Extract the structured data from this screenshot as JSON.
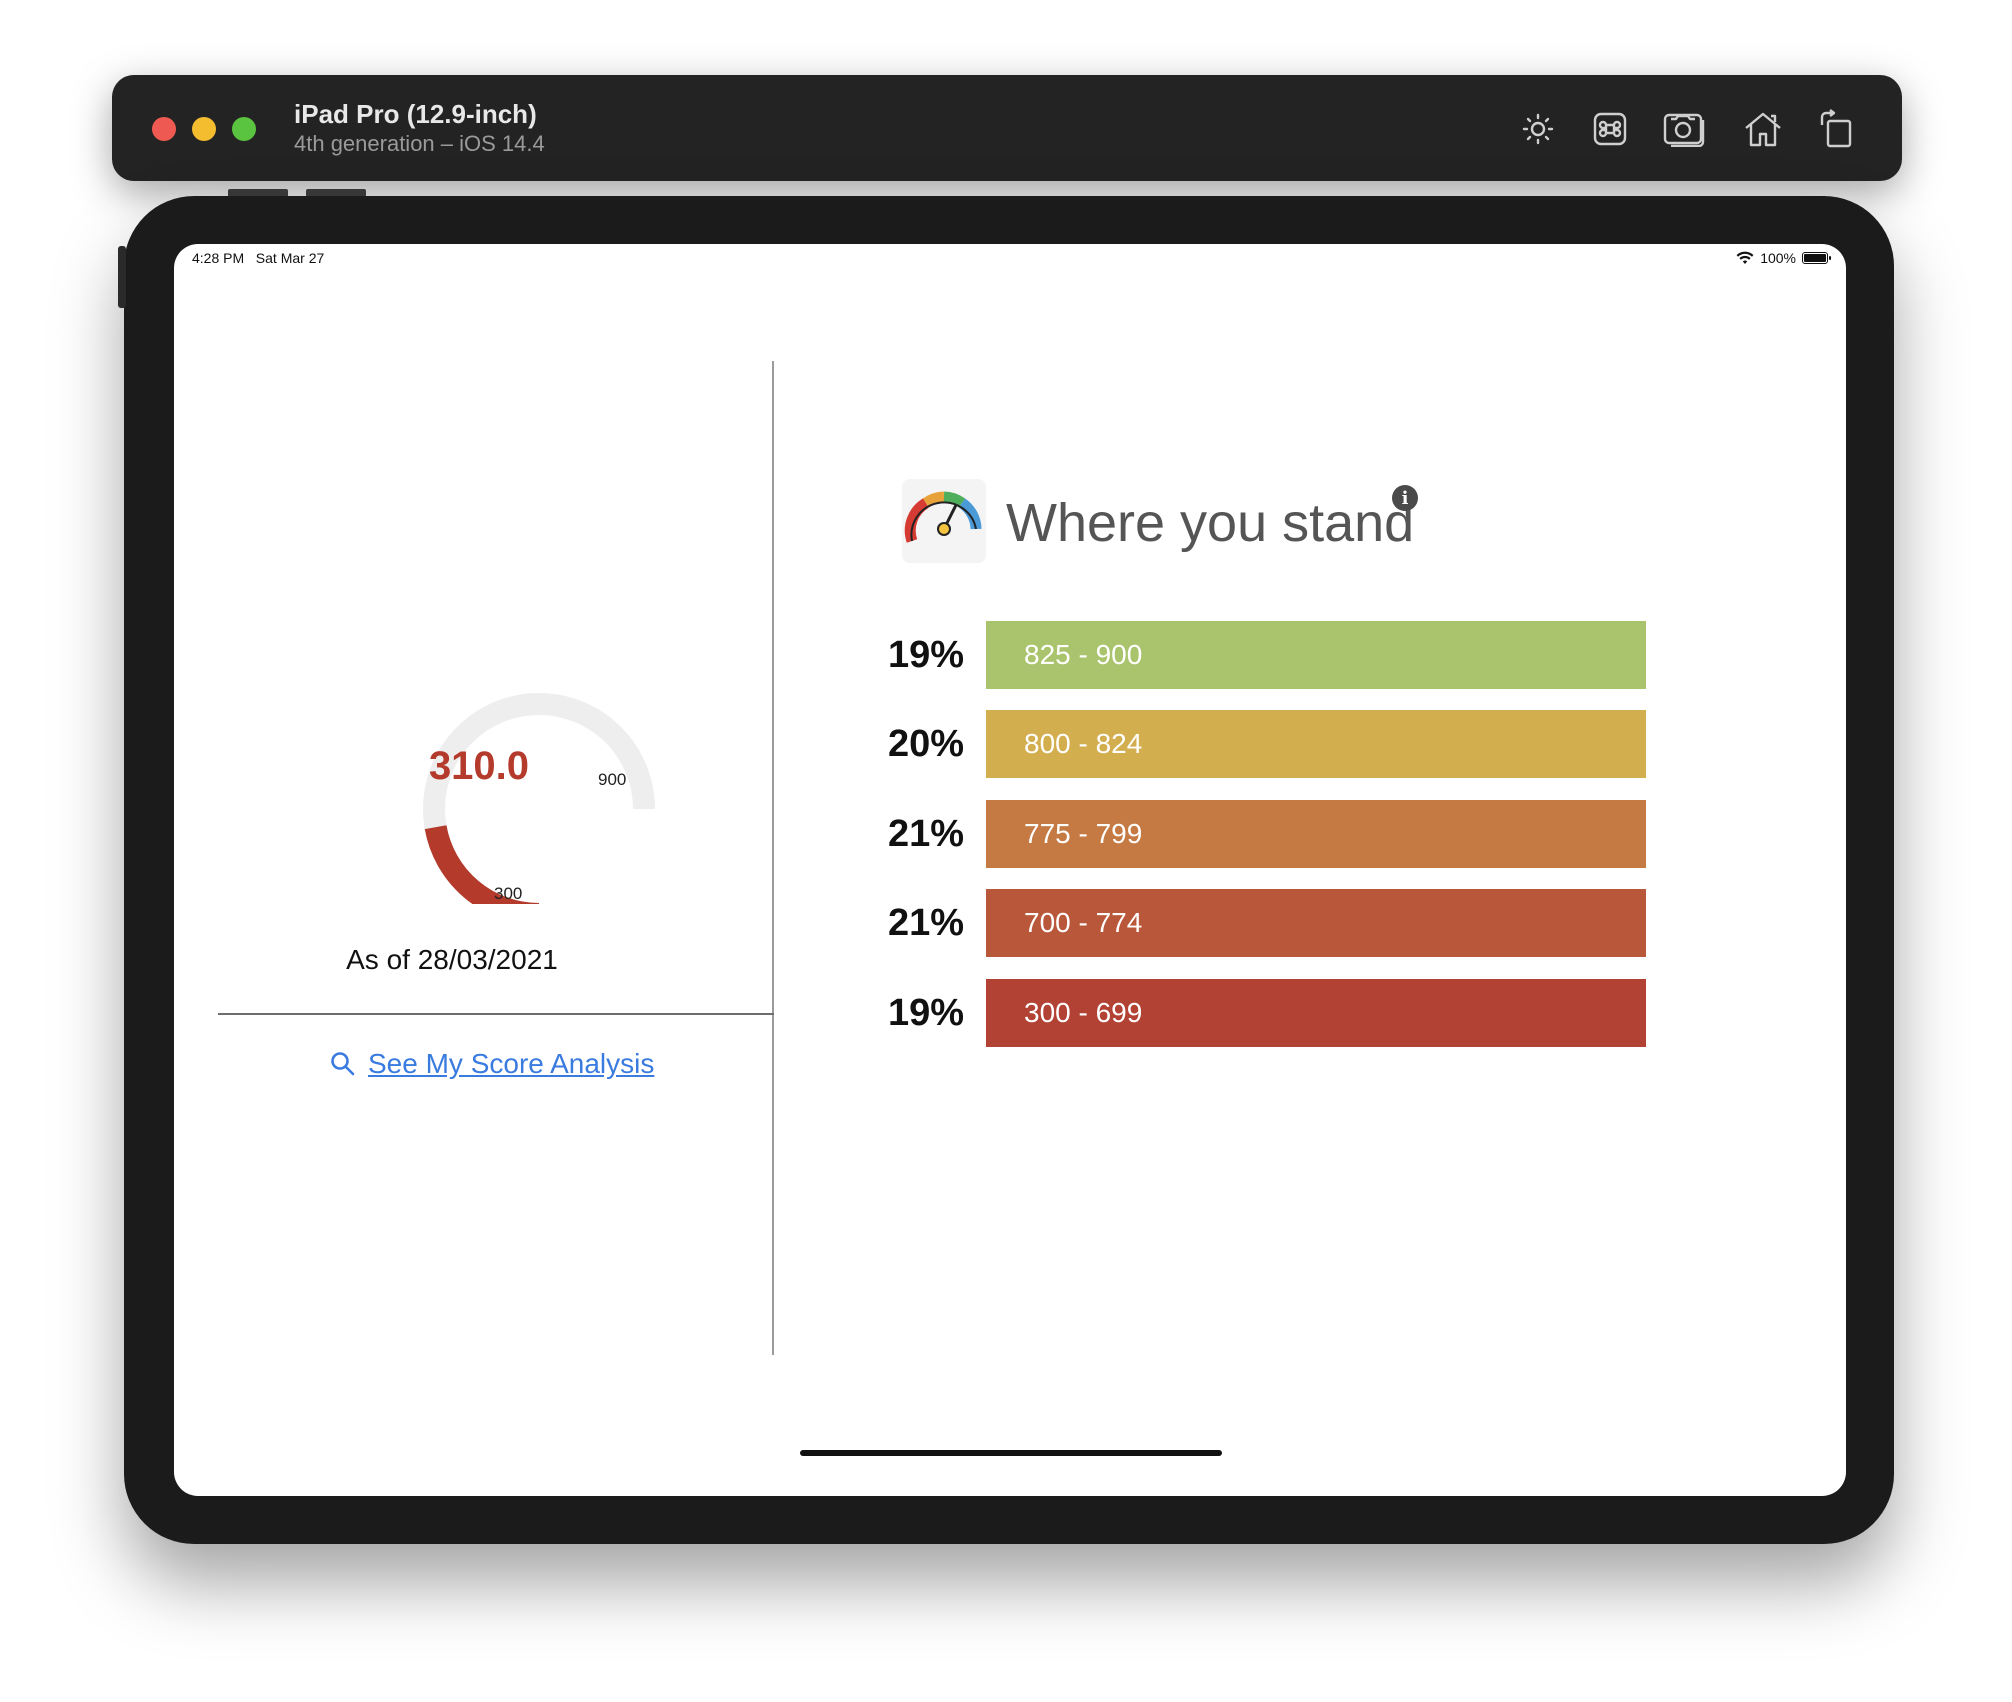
{
  "window": {
    "title": "iPad Pro (12.9-inch)",
    "subtitle": "4th generation – iOS 14.4",
    "traffic_lights": [
      "close",
      "minimize",
      "zoom"
    ],
    "toolbar_icons": [
      "brightness-icon",
      "command-icon",
      "screenshot-icon",
      "home-icon",
      "rotate-icon"
    ]
  },
  "status_bar": {
    "time_date": "4:28 PM   Sat Mar 27",
    "battery": "100%"
  },
  "score_panel": {
    "score": "310.0",
    "gauge_min": "300",
    "gauge_max": "900",
    "score_value": 310,
    "as_of": "As of 28/03/2021",
    "analysis_link": "See My Score Analysis",
    "colors": {
      "arc": "#b43a2b",
      "track": "#eeeeee",
      "link": "#3a7be0"
    }
  },
  "where_you_stand": {
    "title": "Where you stand",
    "info_glyph": "i",
    "bands": [
      {
        "percent": "19%",
        "range": "825 - 900",
        "color": "#a9c46c"
      },
      {
        "percent": "20%",
        "range": "800 - 824",
        "color": "#d3ae4f"
      },
      {
        "percent": "21%",
        "range": "775 - 799",
        "color": "#c47a42"
      },
      {
        "percent": "21%",
        "range": "700 - 774",
        "color": "#b9573a"
      },
      {
        "percent": "19%",
        "range": "300 - 699",
        "color": "#b24233"
      }
    ]
  }
}
